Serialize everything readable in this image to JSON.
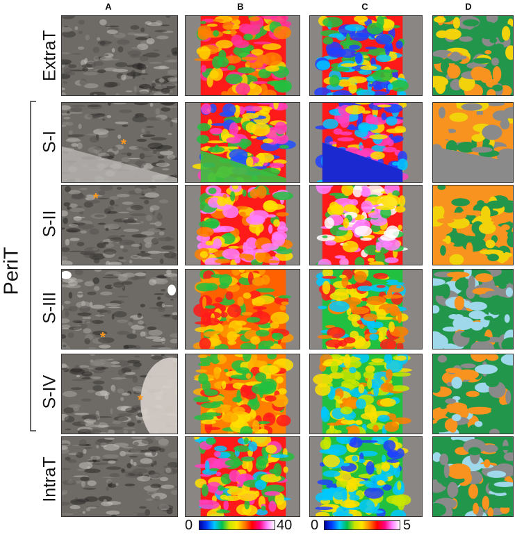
{
  "columns": [
    "A",
    "B",
    "C",
    "D"
  ],
  "rows": [
    "ExtraT",
    "S-I",
    "S-II",
    "S-III",
    "S-IV",
    "IntraT"
  ],
  "group_label": "PeriT",
  "colorbar_b": {
    "min": "0",
    "max": "40"
  },
  "colorbar_c": {
    "min": "0",
    "max": "5"
  },
  "marker": "*",
  "colors": {
    "orange": "#f7931e",
    "green": "#22964a",
    "yellow": "#f2d20a",
    "lightblue": "#9fd8ea",
    "gray": "#8a8a8a",
    "star": "#ff9a1f"
  }
}
